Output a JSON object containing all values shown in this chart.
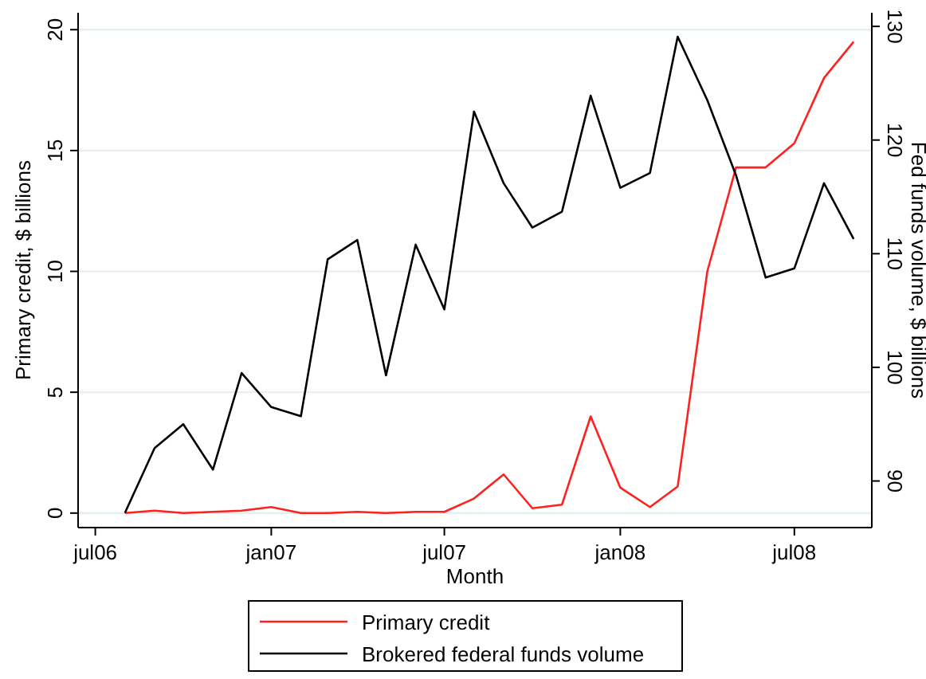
{
  "chart_data": {
    "type": "line",
    "xlabel": "Month",
    "ylabel": "Primary credit, $ billions",
    "y2label": "Fed funds volume, $ billions",
    "x": [
      "2006-08",
      "2006-09",
      "2006-10",
      "2006-11",
      "2006-12",
      "2007-01",
      "2007-02",
      "2007-03",
      "2007-04",
      "2007-05",
      "2007-06",
      "2007-07",
      "2007-08",
      "2007-09",
      "2007-10",
      "2007-11",
      "2007-12",
      "2008-01",
      "2008-02",
      "2008-03",
      "2008-04",
      "2008-05",
      "2008-06",
      "2008-07",
      "2008-08",
      "2008-09"
    ],
    "series": [
      {
        "name": "Primary credit",
        "color": "#ff2020",
        "values": [
          0,
          0.1,
          0,
          0.05,
          0.1,
          0.25,
          0,
          0,
          0.05,
          0,
          0.05,
          0.05,
          0.6,
          1.6,
          0.2,
          0.35,
          4.0,
          1.05,
          0.25,
          1.1,
          10.0,
          14.3,
          14.3,
          15.3,
          18.0,
          19.5
        ]
      },
      {
        "name": "Brokered federal funds volume",
        "color": "#000000",
        "axis": "y2",
        "values": [
          87.2,
          92.9,
          95.0,
          91.0,
          99.5,
          96.5,
          95.7,
          109.5,
          111.2,
          99.3,
          110.8,
          105.1,
          122.5,
          116.2,
          112.3,
          113.7,
          123.9,
          115.8,
          117.1,
          129.1,
          123.5,
          116.9,
          107.9,
          108.7,
          116.2,
          111.3
        ]
      }
    ],
    "xlim": [
      "2006-06-13",
      "2008-09-20"
    ],
    "xticks": [
      {
        "value": "2006-07",
        "label": "jul06"
      },
      {
        "value": "2007-01",
        "label": "jan07"
      },
      {
        "value": "2007-07",
        "label": "jul07"
      },
      {
        "value": "2008-01",
        "label": "jan08"
      },
      {
        "value": "2008-07",
        "label": "jul08"
      }
    ],
    "ylim": [
      -0.6,
      20.7
    ],
    "yticks": [
      0,
      5,
      10,
      15,
      20
    ],
    "y2lim": [
      85.9,
      131.2
    ],
    "y2ticks": [
      90,
      100,
      110,
      120,
      130
    ],
    "grid": "y",
    "legend": "bottom",
    "line_style": "solid",
    "marker": "none"
  }
}
